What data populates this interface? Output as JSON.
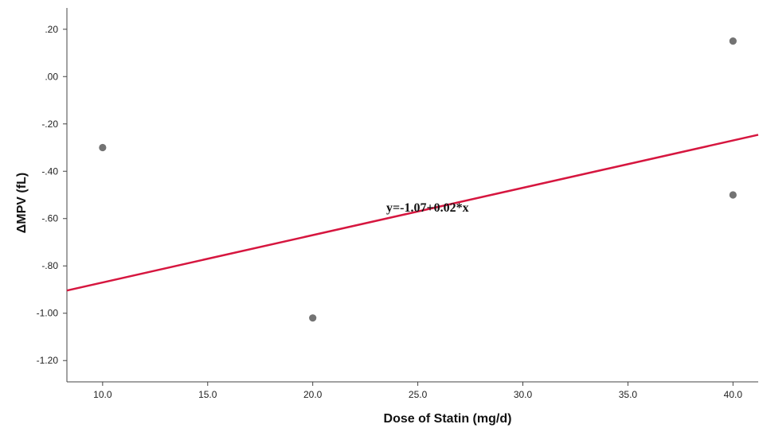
{
  "chart_data": {
    "type": "scatter",
    "xlabel": "Dose of Statin (mg/d)",
    "ylabel": "ΔMPV (fL)",
    "xlim": [
      8.3,
      41.2
    ],
    "ylim": [
      -1.29,
      0.29
    ],
    "xticks": [
      10,
      15,
      20,
      25,
      30,
      35,
      40
    ],
    "xtick_labels": [
      "10.0",
      "15.0",
      "20.0",
      "25.0",
      "30.0",
      "35.0",
      "40.0"
    ],
    "yticks": [
      0.2,
      0.0,
      -0.2,
      -0.4,
      -0.6,
      -0.8,
      -1.0,
      -1.2
    ],
    "ytick_labels": [
      ".20",
      ".00",
      "-.20",
      "-.40",
      "-.60",
      "-.80",
      "-1.00",
      "-1.20"
    ],
    "grid": false,
    "points": [
      {
        "x": 10,
        "y": -0.3
      },
      {
        "x": 20,
        "y": -1.02
      },
      {
        "x": 40,
        "y": 0.15
      },
      {
        "x": 40,
        "y": -0.5
      }
    ],
    "fit_line": {
      "intercept": -1.07,
      "slope": 0.02,
      "label": "y=-1.07+0.02*x",
      "label_at": {
        "x": 23.5,
        "y": -0.57
      }
    },
    "colors": {
      "point": "#737373",
      "fit_line": "#d6163f",
      "axis": "#444444"
    }
  }
}
